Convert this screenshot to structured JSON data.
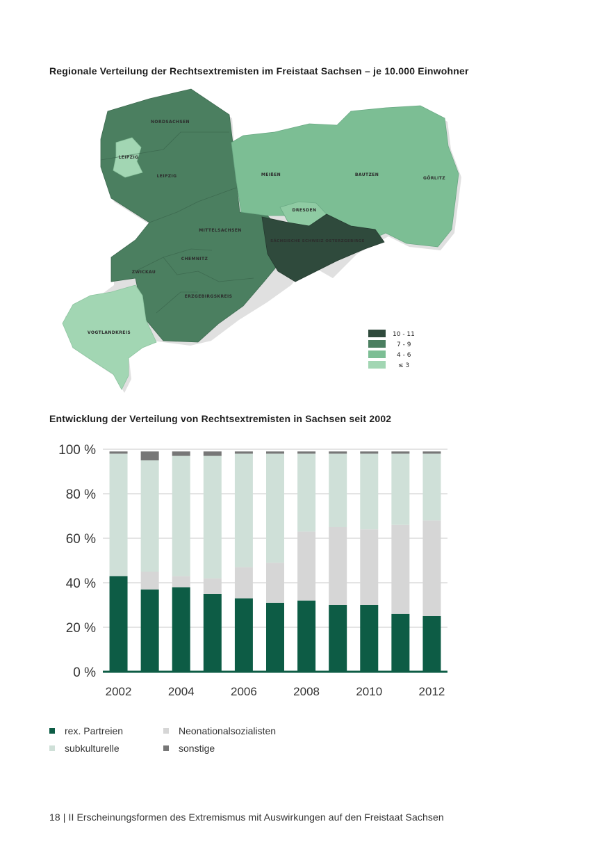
{
  "map": {
    "title": "Regionale Verteilung der Rechtsextremisten im Freistaat Sachsen –  je 10.000 Einwohner",
    "regions": [
      {
        "name": "NORDSACHSEN",
        "class": "7 - 9"
      },
      {
        "name": "LEIPZIG",
        "class": "≤ 3"
      },
      {
        "name": "LEIPZIG",
        "class": "7 - 9"
      },
      {
        "name": "MEIßEN",
        "class": "4 - 6"
      },
      {
        "name": "BAUTZEN",
        "class": "4 - 6"
      },
      {
        "name": "GÖRLITZ",
        "class": "4 - 6"
      },
      {
        "name": "DRESDEN",
        "class": "4 - 6"
      },
      {
        "name": "SÄCHSISCHE SCHWEIZ OSTERZGEBIRGE",
        "class": "10 - 11"
      },
      {
        "name": "MITTELSACHSEN",
        "class": "7 - 9"
      },
      {
        "name": "CHEMNITZ",
        "class": "7 - 9"
      },
      {
        "name": "ZWICKAU",
        "class": "7 - 9"
      },
      {
        "name": "ERZGEBIRGSKREIS",
        "class": "7 - 9"
      },
      {
        "name": "VOGTLANDKREIS",
        "class": "≤ 3"
      }
    ],
    "legend": [
      {
        "label": "10 - 11",
        "color": "#2f4a3c"
      },
      {
        "label": "7 - 9",
        "color": "#4b7f60"
      },
      {
        "label": "4 - 6",
        "color": "#7cbe94"
      },
      {
        "label": "≤ 3",
        "color": "#a2d6b3"
      }
    ]
  },
  "chart_data": {
    "type": "bar",
    "stacked": true,
    "title": "Entwicklung der Verteilung von Rechtsextremisten in Sachsen seit 2002",
    "x": [
      2002,
      2003,
      2004,
      2005,
      2006,
      2007,
      2008,
      2009,
      2010,
      2011,
      2012
    ],
    "x_tick_labels": [
      "2002",
      "2004",
      "2006",
      "2008",
      "2010",
      "2012"
    ],
    "y_ticks": [
      "0 %",
      "20 %",
      "40 %",
      "60 %",
      "80 %",
      "100 %"
    ],
    "ylim": [
      0,
      100
    ],
    "grid": true,
    "series": [
      {
        "name": "rex. Partreien",
        "color": "#0d5c45",
        "values": [
          43,
          37,
          38,
          35,
          33,
          31,
          32,
          30,
          30,
          26,
          25
        ]
      },
      {
        "name": "Neonationalsozialisten",
        "color": "#d6d6d6",
        "values": [
          0,
          8,
          5,
          7,
          14,
          18,
          31,
          35,
          34,
          40,
          43
        ]
      },
      {
        "name": "subkulturelle",
        "color": "#cfe0d8",
        "values": [
          55,
          50,
          54,
          55,
          51,
          49,
          35,
          33,
          34,
          32,
          30
        ]
      },
      {
        "name": "sonstige",
        "color": "#777777",
        "values": [
          1,
          4,
          2,
          2,
          1,
          1,
          1,
          1,
          1,
          1,
          1
        ]
      }
    ]
  },
  "legend": {
    "items": [
      {
        "label": "rex. Partreien",
        "color": "#0d5c45"
      },
      {
        "label": "Neonationalsozialisten",
        "color": "#d6d6d6"
      },
      {
        "label": "subkulturelle",
        "color": "#cfe0d8"
      },
      {
        "label": "sonstige",
        "color": "#777777"
      }
    ]
  },
  "footer": {
    "text": "18 | II  Erscheinungsformen des Extremismus mit Auswirkungen auf den Freistaat Sachsen"
  }
}
